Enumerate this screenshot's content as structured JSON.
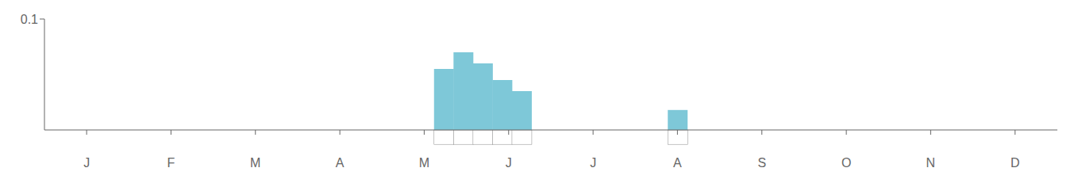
{
  "chart_data": {
    "type": "bar",
    "x": [
      0.5,
      1.5,
      2.5,
      3.5,
      4.5,
      5.5,
      6.5,
      7.5,
      8.5,
      9.5,
      10.5,
      11.5,
      12.5,
      13.5,
      14.5,
      15.5,
      16.5,
      17.5,
      18.5,
      19.5,
      20.5,
      21.5,
      22.5,
      23.5,
      24.5,
      25.5,
      26.5,
      27.5,
      28.5,
      29.5,
      30.5,
      31.5,
      32.5,
      33.5,
      34.5,
      35.5,
      36.5,
      37.5,
      38.5,
      39.5,
      40.5,
      41.5,
      42.5,
      43.5,
      44.5,
      45.5,
      46.5,
      47.5,
      48.5,
      49.5,
      50.5,
      51.5
    ],
    "values": [
      0,
      0,
      0,
      0,
      0,
      0,
      0,
      0,
      0,
      0,
      0,
      0,
      0,
      0,
      0,
      0,
      0,
      0,
      0,
      0,
      0.055,
      0.07,
      0.06,
      0.045,
      0.035,
      0,
      0,
      0,
      0,
      0,
      0,
      0,
      0.018,
      0,
      0,
      0,
      0,
      0,
      0,
      0,
      0,
      0,
      0,
      0,
      0,
      0,
      0,
      0,
      0,
      0,
      0,
      0
    ],
    "color": "#7ec8d8",
    "xlim": [
      0,
      52
    ],
    "xticks": [
      {
        "value": 2.165,
        "label": "J"
      },
      {
        "value": 6.495,
        "label": "F"
      },
      {
        "value": 10.83,
        "label": "M"
      },
      {
        "value": 15.165,
        "label": "A"
      },
      {
        "value": 19.495,
        "label": "M"
      },
      {
        "value": 23.83,
        "label": "J"
      },
      {
        "value": 28.165,
        "label": "J"
      },
      {
        "value": 32.495,
        "label": "A"
      },
      {
        "value": 36.83,
        "label": "S"
      },
      {
        "value": 41.165,
        "label": "O"
      },
      {
        "value": 45.495,
        "label": "N"
      },
      {
        "value": 49.83,
        "label": "D"
      }
    ],
    "ylim": [
      0,
      0.1
    ],
    "yticks": [
      0.1
    ]
  }
}
